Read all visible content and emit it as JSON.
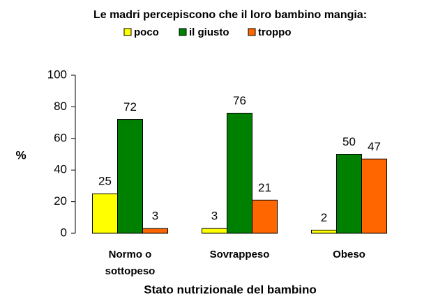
{
  "chart_data": {
    "type": "bar",
    "title": "Le madri percepiscono che il loro bambino mangia:",
    "categories": [
      "Normo o sottopeso",
      "Sovrappeso",
      "Obeso"
    ],
    "series": [
      {
        "name": "poco",
        "color": "#ffff00",
        "values": [
          25,
          3,
          2
        ]
      },
      {
        "name": "il giusto",
        "color": "#008000",
        "values": [
          72,
          76,
          50
        ]
      },
      {
        "name": "troppo",
        "color": "#ff6600",
        "values": [
          3,
          21,
          47
        ]
      }
    ],
    "ylim": [
      0,
      100
    ],
    "yticks": [
      0,
      20,
      40,
      60,
      80,
      100
    ],
    "y_label": "%",
    "x_label": "Stato nutrizionale del bambino",
    "legend": "top"
  }
}
